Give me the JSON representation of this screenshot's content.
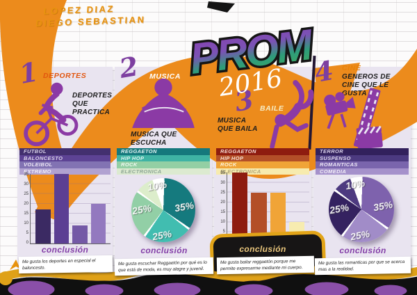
{
  "page": {
    "authors": [
      "LOPEZ DIAZ",
      "DIEGO SEBASTIAN"
    ],
    "title": "PROM",
    "year": "2016",
    "accent_orange": "#ec8b1c",
    "accent_purple": "#8b3aa5"
  },
  "chart_data": [
    {
      "type": "bar",
      "title": "DEPORTES QUE PRACTICA",
      "categories": [
        "FUTBOL",
        "BALONCESTO",
        "VOLEIBOL",
        "EXTREMO"
      ],
      "values": [
        17,
        35,
        9,
        20
      ],
      "ylim": [
        0,
        35
      ],
      "yticks": [
        35,
        30,
        25,
        20,
        15,
        10,
        5,
        0
      ],
      "grid": true,
      "legend_position": "above"
    },
    {
      "type": "pie",
      "title": "MUSICA QUE ESCUCHA",
      "categories": [
        "REGGAETON",
        "HIP HOP",
        "ROCK",
        "ELECTRONICA"
      ],
      "values": [
        35,
        25,
        25,
        10
      ],
      "slice_order": [
        0,
        1,
        2,
        3
      ],
      "legend_position": "above"
    },
    {
      "type": "bar",
      "title": "MUSICA QUE BAILA",
      "categories": [
        "REGGAETON",
        "HIP HOP",
        "ROCK",
        "ELECTRONICA"
      ],
      "values": [
        35,
        25,
        25,
        10
      ],
      "ylim": [
        0,
        35
      ],
      "yticks": [
        35,
        30,
        25,
        20,
        15,
        10,
        5,
        0
      ],
      "grid": true,
      "legend_position": "above"
    },
    {
      "type": "pie",
      "title": "GENEROS DE CINE QUE LE GUSTA",
      "categories": [
        "TERROR",
        "SUSPENSO",
        "ROMANTICAS",
        "COMEDIA"
      ],
      "values": [
        25,
        10,
        35,
        25
      ],
      "slice_order": [
        2,
        3,
        0,
        1
      ],
      "legend_position": "above"
    }
  ],
  "sections": [
    {
      "number": "1",
      "tag": "DEPORTES",
      "subtitle": "DEPORTES\nQUE\nPRACTICA",
      "icon": "bmx-rider-icon",
      "legend": [
        {
          "label": "FUTBOL",
          "bg": "#43306f",
          "fg": "#d6cfe6"
        },
        {
          "label": "BALONCESTO",
          "bg": "#5d4394",
          "fg": "#ddd5ec"
        },
        {
          "label": "VOLEIBOL",
          "bg": "#8273b3",
          "fg": "#ece6f5"
        },
        {
          "label": "EXTREMO",
          "bg": "#b1a2d1",
          "fg": "#f2eef8"
        }
      ],
      "palette": [
        "#3b2a63",
        "#5c3f93",
        "#7459a6",
        "#9379bf"
      ],
      "conclusion_label": "conclusión",
      "note": "Me gusta los deportes en especial el baloncesto."
    },
    {
      "number": "2",
      "tag": "MUSICA",
      "subtitle": "MUSICA QUE\nESCUCHA",
      "icon": "listening-person-icon",
      "legend": [
        {
          "label": "REGGAETON",
          "bg": "#15787c",
          "fg": "#e2f3f2"
        },
        {
          "label": "HIP HOP",
          "bg": "#3fb3a4",
          "fg": "#e0f4f0"
        },
        {
          "label": "ROCK",
          "bg": "#93cfa4",
          "fg": "#f0f9f1"
        },
        {
          "label": "ELECTRONICA",
          "bg": "#dcead0",
          "fg": "#8fa796"
        }
      ],
      "palette": [
        "#157a7e",
        "#41bdb0",
        "#92cfa6",
        "#dcedcb"
      ],
      "pie_labels": [
        "35%",
        "25%",
        "25%",
        "10%"
      ],
      "conclusion_label": "conclusión",
      "note": "Me gusta escuchar Reggaetón por qué es lo que está de moda, es muy alegre y juvenil."
    },
    {
      "number": "3",
      "tag": "BAILE",
      "subtitle": "MUSICA\nQUE BAILA",
      "icon": "breakdancer-icon",
      "legend": [
        {
          "label": "REGGAETON",
          "bg": "#8e1c0f",
          "fg": "#f5ddd5"
        },
        {
          "label": "HIP HOP",
          "bg": "#b34f28",
          "fg": "#f6e1d4"
        },
        {
          "label": "ROCK",
          "bg": "#f0a437",
          "fg": "#fdf3dc"
        },
        {
          "label": "ELECTRONICA",
          "bg": "#f7ebae",
          "fg": "#b3a678"
        }
      ],
      "palette": [
        "#8e1c0f",
        "#b34f28",
        "#f0a437",
        "#f7ecb0"
      ],
      "conclusion_label": "conclusión",
      "note": "Me gusta bailar reggaetón porque me permite expresarme mediante mi cuerpo."
    },
    {
      "number": "4",
      "tag": "CINE",
      "subtitle": "GENEROS DE\nCINE QUE LE\nGUSTA",
      "icon": "cinema-icon",
      "legend": [
        {
          "label": "TERROR",
          "bg": "#32215c",
          "fg": "#d9d0e9"
        },
        {
          "label": "SUSPENSO",
          "bg": "#4c3a80",
          "fg": "#e0d8ef"
        },
        {
          "label": "ROMANTICAS",
          "bg": "#7a65ad",
          "fg": "#ebe5f5"
        },
        {
          "label": "COMEDIA",
          "bg": "#a591cb",
          "fg": "#f2eef8"
        }
      ],
      "palette": [
        "#342260",
        "#4d3a80",
        "#7e62ad",
        "#a18cc8"
      ],
      "pie_labels": [
        "35%",
        "25%",
        "25%",
        "10%"
      ],
      "conclusion_label": "conclusión",
      "note": "Me gusta las romanticas por que se acerca mas a la realidad."
    }
  ]
}
